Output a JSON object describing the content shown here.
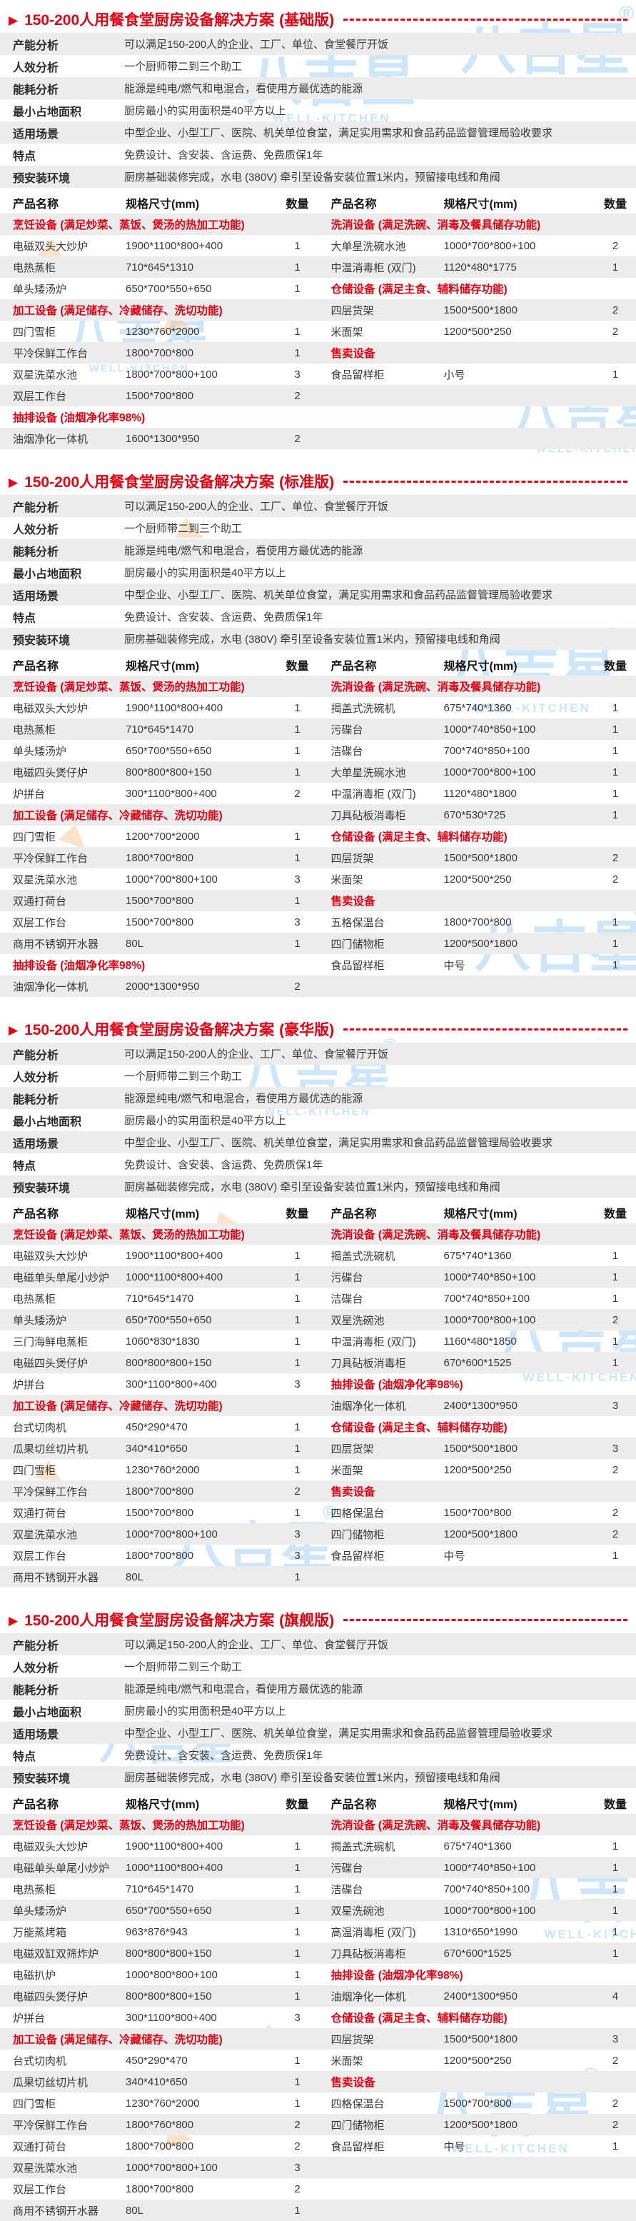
{
  "ui": {
    "arrow": "▶"
  },
  "watermark": {
    "brand": "八吉星",
    "latin": "WELL-KITCHEN",
    "reg": "®"
  },
  "table_header": {
    "name": "产品名称",
    "spec": "规格尺寸(mm)",
    "qty": "数量"
  },
  "sections": [
    {
      "title": "150-200人用餐食堂厨房设备解决方案",
      "variant": "(基础版)",
      "analysis": [
        {
          "label": "产能分析",
          "value": "可以满足150-200人的企业、工厂、单位、食堂餐厅开饭"
        },
        {
          "label": "人效分析",
          "value": "一个厨师带二到三个助工"
        },
        {
          "label": "能耗分析",
          "value": "能源是纯电/燃气和电混合，看使用方最优选的能源"
        },
        {
          "label": "最小占地面积",
          "value": "厨房最小的实用面积是40平方以上"
        },
        {
          "label": "适用场景",
          "value": "中型企业、小型工厂、医院、机关单位食堂，满足实用需求和食品药品监督管理局验收要求"
        },
        {
          "label": "特点",
          "value": "免费设计、含安装、含运费、免费质保1年"
        },
        {
          "label": "预安装环境",
          "value": "厨房基础装修完成，水电 (380V) 牵引至设备安装位置1米内，预留接电线和角阀"
        }
      ],
      "left_rows": [
        {
          "type": "cat",
          "name": "烹饪设备 (满足炒菜、蒸饭、煲汤的热加工功能)"
        },
        {
          "type": "item",
          "name": "电磁双头大炒炉",
          "spec": "1900*1100*800+400",
          "qty": "1"
        },
        {
          "type": "item",
          "name": "电热蒸柜",
          "spec": "710*645*1310",
          "qty": "1"
        },
        {
          "type": "item",
          "name": "单头矮汤炉",
          "spec": "650*700*550+650",
          "qty": "1"
        },
        {
          "type": "cat",
          "name": "加工设备 (满足储存、冷藏储存、洗切功能)"
        },
        {
          "type": "item",
          "name": "四门雪柜",
          "spec": "1230*760*2000",
          "qty": "1"
        },
        {
          "type": "item",
          "name": "平冷保鲜工作台",
          "spec": "1800*700*800",
          "qty": "1"
        },
        {
          "type": "item",
          "name": "双星洗菜水池",
          "spec": "1800*700*800+100",
          "qty": "3"
        },
        {
          "type": "item",
          "name": "双层工作台",
          "spec": "1500*700*800",
          "qty": "2"
        },
        {
          "type": "cat",
          "name": "抽排设备 (油烟净化率98%)"
        },
        {
          "type": "item",
          "name": "油烟净化一体机",
          "spec": "1600*1300*950",
          "qty": "2"
        }
      ],
      "right_rows": [
        {
          "type": "cat",
          "name": "洗消设备 (满足洗碗、消毒及餐具储存功能)"
        },
        {
          "type": "item",
          "name": "大单星洗碗水池",
          "spec": "1000*700*800+100",
          "qty": "2"
        },
        {
          "type": "item",
          "name": "中温消毒柜 (双门)",
          "spec": "1120*480*1775",
          "qty": "1"
        },
        {
          "type": "cat",
          "name": "仓储设备 (满足主食、辅料储存功能)"
        },
        {
          "type": "item",
          "name": "四层货架",
          "spec": "1500*500*1800",
          "qty": "2"
        },
        {
          "type": "item",
          "name": "米面架",
          "spec": "1200*500*250",
          "qty": "2"
        },
        {
          "type": "cat",
          "name": "售卖设备"
        },
        {
          "type": "item",
          "name": "食品留样柜",
          "spec": "小号",
          "qty": "1"
        },
        {
          "type": "empty"
        },
        {
          "type": "empty"
        },
        {
          "type": "empty"
        }
      ]
    },
    {
      "title": "150-200人用餐食堂厨房设备解决方案",
      "variant": "(标准版)",
      "analysis": [
        {
          "label": "产能分析",
          "value": "可以满足150-200人的企业、工厂、单位、食堂餐厅开饭"
        },
        {
          "label": "人效分析",
          "value": "一个厨师带二到三个助工"
        },
        {
          "label": "能耗分析",
          "value": "能源是纯电/燃气和电混合，看使用方最优选的能源"
        },
        {
          "label": "最小占地面积",
          "value": "厨房最小的实用面积是40平方以上"
        },
        {
          "label": "适用场景",
          "value": "中型企业、小型工厂、医院、机关单位食堂，满足实用需求和食品药品监督管理局验收要求"
        },
        {
          "label": "特点",
          "value": "免费设计、含安装、含运费、免费质保1年"
        },
        {
          "label": "预安装环境",
          "value": "厨房基础装修完成，水电 (380V) 牵引至设备安装位置1米内，预留接电线和角阀"
        }
      ],
      "left_rows": [
        {
          "type": "cat",
          "name": "烹饪设备 (满足炒菜、蒸饭、煲汤的热加工功能)"
        },
        {
          "type": "item",
          "name": "电磁双头大炒炉",
          "spec": "1900*1100*800+400",
          "qty": "1"
        },
        {
          "type": "item",
          "name": "电热蒸柜",
          "spec": "710*645*1470",
          "qty": "1"
        },
        {
          "type": "item",
          "name": "单头矮汤炉",
          "spec": "650*700*550+650",
          "qty": "1"
        },
        {
          "type": "item",
          "name": "电磁四头煲仔炉",
          "spec": "800*800*800+150",
          "qty": "1"
        },
        {
          "type": "item",
          "name": "炉拼台",
          "spec": "300*1100*800+400",
          "qty": "2"
        },
        {
          "type": "cat",
          "name": "加工设备 (满足储存、冷藏储存、洗切功能)"
        },
        {
          "type": "item",
          "name": "四门雪柜",
          "spec": "1200*700*2000",
          "qty": "1"
        },
        {
          "type": "item",
          "name": "平冷保鲜工作台",
          "spec": "1800*700*800",
          "qty": "1"
        },
        {
          "type": "item",
          "name": "双星洗菜水池",
          "spec": "1000*700*800+100",
          "qty": "3"
        },
        {
          "type": "item",
          "name": "双通打荷台",
          "spec": "1500*700*800",
          "qty": "1"
        },
        {
          "type": "item",
          "name": "双层工作台",
          "spec": "1500*700*800",
          "qty": "3"
        },
        {
          "type": "item",
          "name": "商用不锈钢开水器",
          "spec": "80L",
          "qty": "1"
        },
        {
          "type": "cat",
          "name": "抽排设备 (油烟净化率98%)"
        },
        {
          "type": "item",
          "name": "油烟净化一体机",
          "spec": "2000*1300*950",
          "qty": "2"
        }
      ],
      "right_rows": [
        {
          "type": "cat",
          "name": "洗消设备 (满足洗碗、消毒及餐具储存功能)"
        },
        {
          "type": "item",
          "name": "揭盖式洗碗机",
          "spec": "675*740*1360",
          "qty": "1"
        },
        {
          "type": "item",
          "name": "污碟台",
          "spec": "1000*740*850+100",
          "qty": "1"
        },
        {
          "type": "item",
          "name": "洁碟台",
          "spec": "700*740*850+100",
          "qty": "1"
        },
        {
          "type": "item",
          "name": "大单星洗碗水池",
          "spec": "1000*700*800+100",
          "qty": "1"
        },
        {
          "type": "item",
          "name": "中温消毒柜 (双门)",
          "spec": "1120*480*1800",
          "qty": "1"
        },
        {
          "type": "item",
          "name": "刀具砧板消毒柜",
          "spec": "670*530*725",
          "qty": "1"
        },
        {
          "type": "cat",
          "name": "仓储设备 (满足主食、辅料储存功能)"
        },
        {
          "type": "item",
          "name": "四层货架",
          "spec": "1500*500*1800",
          "qty": "2"
        },
        {
          "type": "item",
          "name": "米面架",
          "spec": "1200*500*250",
          "qty": "2"
        },
        {
          "type": "cat",
          "name": "售卖设备"
        },
        {
          "type": "item",
          "name": "五格保温台",
          "spec": "1800*700*800",
          "qty": "1"
        },
        {
          "type": "item",
          "name": "四门储物柜",
          "spec": "1200*500*1800",
          "qty": "1"
        },
        {
          "type": "item",
          "name": "食品留样柜",
          "spec": "中号",
          "qty": "1"
        },
        {
          "type": "empty"
        }
      ]
    },
    {
      "title": "150-200人用餐食堂厨房设备解决方案",
      "variant": "(豪华版)",
      "analysis": [
        {
          "label": "产能分析",
          "value": "可以满足150-200人的企业、工厂、单位、食堂餐厅开饭"
        },
        {
          "label": "人效分析",
          "value": "一个厨师带二到三个助工"
        },
        {
          "label": "能耗分析",
          "value": "能源是纯电/燃气和电混合，看使用方最优选的能源"
        },
        {
          "label": "最小占地面积",
          "value": "厨房最小的实用面积是40平方以上"
        },
        {
          "label": "适用场景",
          "value": "中型企业、小型工厂、医院、机关单位食堂，满足实用需求和食品药品监督管理局验收要求"
        },
        {
          "label": "特点",
          "value": "免费设计、含安装、含运费、免费质保1年"
        },
        {
          "label": "预安装环境",
          "value": "厨房基础装修完成，水电 (380V) 牵引至设备安装位置1米内，预留接电线和角阀"
        }
      ],
      "left_rows": [
        {
          "type": "cat",
          "name": "烹饪设备 (满足炒菜、蒸饭、煲汤的热加工功能)"
        },
        {
          "type": "item",
          "name": "电磁双头大炒炉",
          "spec": "1900*1100*800+400",
          "qty": "1"
        },
        {
          "type": "item",
          "name": "电磁单头单尾小炒炉",
          "spec": "1000*1100*800+400",
          "qty": "1"
        },
        {
          "type": "item",
          "name": "电热蒸柜",
          "spec": "710*645*1470",
          "qty": "1"
        },
        {
          "type": "item",
          "name": "单头矮汤炉",
          "spec": "650*700*550+650",
          "qty": "1"
        },
        {
          "type": "item",
          "name": "三门海鲜电蒸柜",
          "spec": "1060*830*1830",
          "qty": "1"
        },
        {
          "type": "item",
          "name": "电磁四头煲仔炉",
          "spec": "800*800*800+150",
          "qty": "1"
        },
        {
          "type": "item",
          "name": "炉拼台",
          "spec": "300*1100*800+400",
          "qty": "3"
        },
        {
          "type": "cat",
          "name": "加工设备 (满足储存、冷藏储存、洗切功能)"
        },
        {
          "type": "item",
          "name": "台式切肉机",
          "spec": "450*290*470",
          "qty": "1"
        },
        {
          "type": "item",
          "name": "瓜果切丝切片机",
          "spec": "340*410*650",
          "qty": "1"
        },
        {
          "type": "item",
          "name": "四门雪柜",
          "spec": "1230*760*2000",
          "qty": "1"
        },
        {
          "type": "item",
          "name": "平冷保鲜工作台",
          "spec": "1800*700*800",
          "qty": "2"
        },
        {
          "type": "item",
          "name": "双通打荷台",
          "spec": "1500*700*800",
          "qty": "1"
        },
        {
          "type": "item",
          "name": "双星洗菜水池",
          "spec": "1000*700*800+100",
          "qty": "3"
        },
        {
          "type": "item",
          "name": "双层工作台",
          "spec": "1800*700*800",
          "qty": "3"
        },
        {
          "type": "item",
          "name": "商用不锈钢开水器",
          "spec": "80L",
          "qty": "1"
        }
      ],
      "right_rows": [
        {
          "type": "cat",
          "name": "洗消设备 (满足洗碗、消毒及餐具储存功能)"
        },
        {
          "type": "item",
          "name": "揭盖式洗碗机",
          "spec": "675*740*1360",
          "qty": "1"
        },
        {
          "type": "item",
          "name": "污碟台",
          "spec": "1000*740*850+100",
          "qty": "1"
        },
        {
          "type": "item",
          "name": "洁碟台",
          "spec": "700*740*850+100",
          "qty": "1"
        },
        {
          "type": "item",
          "name": "双星洗碗池",
          "spec": "1000*700*800+100",
          "qty": "2"
        },
        {
          "type": "item",
          "name": "中温消毒柜 (双门)",
          "spec": "1160*480*1850",
          "qty": "1"
        },
        {
          "type": "item",
          "name": "刀具砧板消毒柜",
          "spec": "670*600*1525",
          "qty": "1"
        },
        {
          "type": "cat",
          "name": "抽排设备 (油烟净化率98%)"
        },
        {
          "type": "item",
          "name": "油烟净化一体机",
          "spec": "2400*1300*950",
          "qty": "3"
        },
        {
          "type": "cat",
          "name": "仓储设备 (满足主食、辅料储存功能)"
        },
        {
          "type": "item",
          "name": "四层货架",
          "spec": "1500*500*1800",
          "qty": "3"
        },
        {
          "type": "item",
          "name": "米面架",
          "spec": "1200*500*250",
          "qty": "2"
        },
        {
          "type": "cat",
          "name": "售卖设备"
        },
        {
          "type": "item",
          "name": "四格保温台",
          "spec": "1500*700*800",
          "qty": "2"
        },
        {
          "type": "item",
          "name": "四门储物柜",
          "spec": "1200*500*1800",
          "qty": "2"
        },
        {
          "type": "item",
          "name": "食品留样柜",
          "spec": "中号",
          "qty": "1"
        },
        {
          "type": "empty"
        }
      ]
    },
    {
      "title": "150-200人用餐食堂厨房设备解决方案",
      "variant": "(旗舰版)",
      "analysis": [
        {
          "label": "产能分析",
          "value": "可以满足150-200人的企业、工厂、单位、食堂餐厅开饭"
        },
        {
          "label": "人效分析",
          "value": "一个厨师带二到三个助工"
        },
        {
          "label": "能耗分析",
          "value": "能源是纯电/燃气和电混合，看使用方最优选的能源"
        },
        {
          "label": "最小占地面积",
          "value": "厨房最小的实用面积是40平方以上"
        },
        {
          "label": "适用场景",
          "value": "中型企业、小型工厂、医院、机关单位食堂，满足实用需求和食品药品监督管理局验收要求"
        },
        {
          "label": "特点",
          "value": "免费设计、含安装、含运费、免费质保1年"
        },
        {
          "label": "预安装环境",
          "value": "厨房基础装修完成，水电 (380V) 牵引至设备安装位置1米内，预留接电线和角阀"
        }
      ],
      "left_rows": [
        {
          "type": "cat",
          "name": "烹饪设备 (满足炒菜、蒸饭、煲汤的热加工功能)"
        },
        {
          "type": "item",
          "name": "电磁双头大炒炉",
          "spec": "1900*1100*800+400",
          "qty": "1"
        },
        {
          "type": "item",
          "name": "电磁单头单尾小炒炉",
          "spec": "1000*1100*800+400",
          "qty": "1"
        },
        {
          "type": "item",
          "name": "电热蒸柜",
          "spec": "710*645*1470",
          "qty": "1"
        },
        {
          "type": "item",
          "name": "单头矮汤炉",
          "spec": "650*700*550+650",
          "qty": "1"
        },
        {
          "type": "item",
          "name": "万能蒸烤箱",
          "spec": "963*876*943",
          "qty": "1"
        },
        {
          "type": "item",
          "name": "电磁双缸双筛炸炉",
          "spec": "800*800*800+150",
          "qty": "1"
        },
        {
          "type": "item",
          "name": "电磁扒炉",
          "spec": "1000*800*800+100",
          "qty": "1"
        },
        {
          "type": "item",
          "name": "电磁四头煲仔炉",
          "spec": "800*800*800+150",
          "qty": "1"
        },
        {
          "type": "item",
          "name": "炉拼台",
          "spec": "300*1100*800+400",
          "qty": "3"
        },
        {
          "type": "cat",
          "name": "加工设备 (满足储存、冷藏储存、洗切功能)"
        },
        {
          "type": "item",
          "name": "台式切肉机",
          "spec": "450*290*470",
          "qty": "1"
        },
        {
          "type": "item",
          "name": "瓜果切丝切片机",
          "spec": "340*410*650",
          "qty": "1"
        },
        {
          "type": "item",
          "name": "四门雪柜",
          "spec": "1230*760*2000",
          "qty": "1"
        },
        {
          "type": "item",
          "name": "平冷保鲜工作台",
          "spec": "1800*760*800",
          "qty": "2"
        },
        {
          "type": "item",
          "name": "双通打荷台",
          "spec": "1800*700*800",
          "qty": "2"
        },
        {
          "type": "item",
          "name": "双星洗菜水池",
          "spec": "1000*700*800+100",
          "qty": "3"
        },
        {
          "type": "item",
          "name": "双层工作台",
          "spec": "1800*700*800",
          "qty": "2"
        },
        {
          "type": "item",
          "name": "商用不锈钢开水器",
          "spec": "80L",
          "qty": "1"
        }
      ],
      "right_rows": [
        {
          "type": "cat",
          "name": "洗消设备 (满足洗碗、消毒及餐具储存功能)"
        },
        {
          "type": "item",
          "name": "揭盖式洗碗机",
          "spec": "675*740*1360",
          "qty": "1"
        },
        {
          "type": "item",
          "name": "污碟台",
          "spec": "1000*740*850+100",
          "qty": "1"
        },
        {
          "type": "item",
          "name": "洁碟台",
          "spec": "700*740*850+100",
          "qty": "1"
        },
        {
          "type": "item",
          "name": "双星洗碗池",
          "spec": "1000*700*800+100",
          "qty": "1"
        },
        {
          "type": "item",
          "name": "高温消毒柜 (双门)",
          "spec": "1310*650*1990",
          "qty": "1"
        },
        {
          "type": "item",
          "name": "刀具砧板消毒柜",
          "spec": "670*600*1525",
          "qty": "1"
        },
        {
          "type": "cat",
          "name": "抽排设备 (油烟净化率98%)"
        },
        {
          "type": "item",
          "name": "油烟净化一体机",
          "spec": "2400*1300*950",
          "qty": "4"
        },
        {
          "type": "cat",
          "name": "仓储设备 (满足主食、辅料储存功能)"
        },
        {
          "type": "item",
          "name": "四层货架",
          "spec": "1500*500*1800",
          "qty": "3"
        },
        {
          "type": "item",
          "name": "米面架",
          "spec": "1200*500*250",
          "qty": "2"
        },
        {
          "type": "cat",
          "name": "售卖设备"
        },
        {
          "type": "item",
          "name": "四格保温台",
          "spec": "1500*700*800",
          "qty": "2"
        },
        {
          "type": "item",
          "name": "四门储物柜",
          "spec": "1200*500*1800",
          "qty": "2"
        },
        {
          "type": "item",
          "name": "食品留样柜",
          "spec": "中号",
          "qty": "1"
        },
        {
          "type": "empty"
        },
        {
          "type": "empty"
        },
        {
          "type": "empty"
        }
      ]
    }
  ]
}
